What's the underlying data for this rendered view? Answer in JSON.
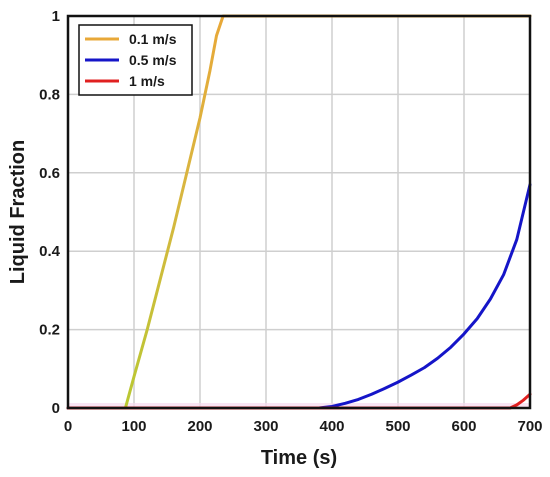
{
  "chart_data": {
    "type": "line",
    "xlabel": "Time (s)",
    "ylabel": "Liquid Fraction",
    "xlim": [
      0,
      700
    ],
    "ylim": [
      0,
      1
    ],
    "xticks": [
      0,
      100,
      200,
      300,
      400,
      500,
      600,
      700
    ],
    "yticks": [
      0,
      0.2,
      0.4,
      0.6,
      0.8,
      1
    ],
    "ytick_labels": [
      "0",
      "0.2",
      "0.4",
      "0.6",
      "0.8",
      "1"
    ],
    "grid": true,
    "legend_position": "top-left",
    "series": [
      {
        "name": "0.1 m/s",
        "color": "#E8A838",
        "x": [
          0,
          87,
          100,
          120,
          140,
          160,
          180,
          200,
          215,
          225,
          235,
          700
        ],
        "y": [
          0,
          0,
          0.08,
          0.2,
          0.33,
          0.46,
          0.6,
          0.74,
          0.86,
          0.95,
          1.0,
          1.0
        ]
      },
      {
        "name": "0.5 m/s",
        "color": "#1515C8",
        "x": [
          0,
          380,
          400,
          420,
          440,
          460,
          480,
          500,
          520,
          540,
          560,
          580,
          600,
          620,
          640,
          660,
          680,
          700
        ],
        "y": [
          0,
          0,
          0.004,
          0.012,
          0.022,
          0.035,
          0.05,
          0.066,
          0.084,
          0.103,
          0.127,
          0.155,
          0.189,
          0.228,
          0.278,
          0.34,
          0.43,
          0.57
        ]
      },
      {
        "name": "1 m/s",
        "color": "#E02020",
        "x": [
          0,
          670,
          680,
          690,
          700
        ],
        "y": [
          0,
          0,
          0.008,
          0.02,
          0.035
        ]
      }
    ]
  }
}
